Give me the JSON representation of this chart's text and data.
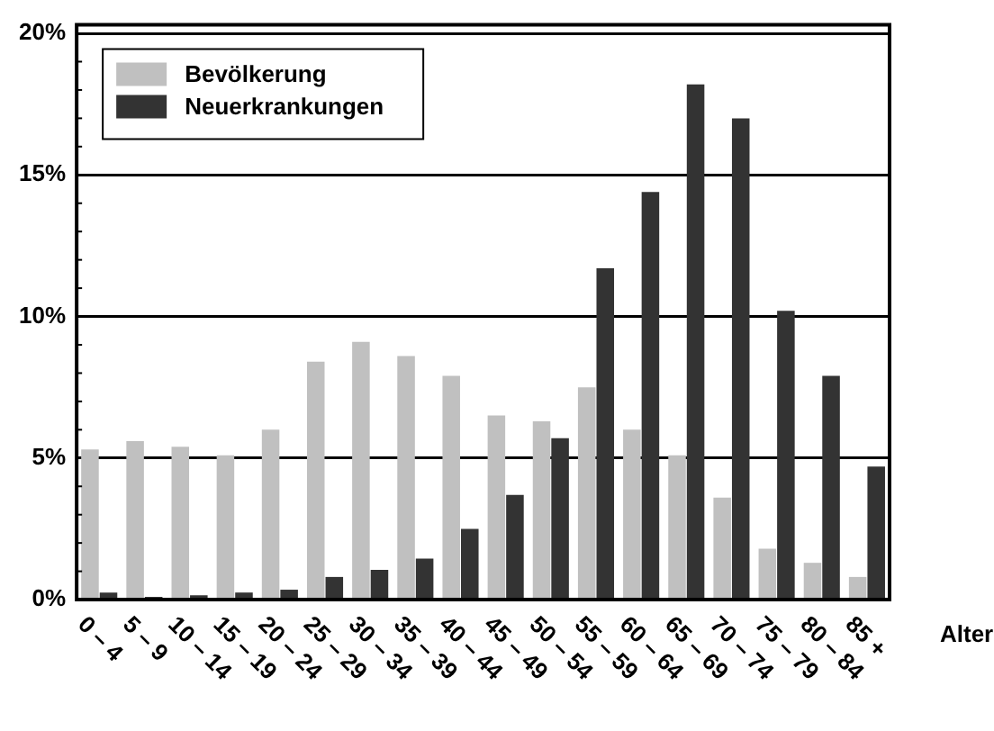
{
  "chart_data": {
    "type": "bar",
    "xlabel": "Alter",
    "categories": [
      "0 – 4",
      "5 – 9",
      "10 – 14",
      "15 – 19",
      "20 – 24",
      "25 – 29",
      "30 – 34",
      "35 – 39",
      "40 – 44",
      "45 – 49",
      "50 – 54",
      "55 – 59",
      "60 – 64",
      "65 – 69",
      "70 – 74",
      "75 – 79",
      "80 – 84",
      "85 +"
    ],
    "series": [
      {
        "name": "Bevölkerung",
        "color": "#c0c0c0",
        "values": [
          5.3,
          5.6,
          5.4,
          5.1,
          6.0,
          8.4,
          9.1,
          8.6,
          7.9,
          6.5,
          6.3,
          7.5,
          6.0,
          5.1,
          3.6,
          1.8,
          1.3,
          0.8
        ]
      },
      {
        "name": "Neuerkrankungen",
        "color": "#333333",
        "values": [
          0.25,
          0.1,
          0.15,
          0.25,
          0.35,
          0.8,
          1.05,
          1.45,
          2.5,
          3.7,
          5.7,
          11.7,
          14.4,
          18.2,
          17.0,
          10.2,
          7.9,
          4.7
        ]
      }
    ],
    "ylim": [
      0,
      20.3
    ],
    "yticks": [
      {
        "value": 0,
        "label": "0%"
      },
      {
        "value": 1,
        "label": null
      },
      {
        "value": 2,
        "label": null
      },
      {
        "value": 3,
        "label": null
      },
      {
        "value": 4,
        "label": null
      },
      {
        "value": 5,
        "label": "5%"
      },
      {
        "value": 6,
        "label": null
      },
      {
        "value": 7,
        "label": null
      },
      {
        "value": 8,
        "label": null
      },
      {
        "value": 9,
        "label": null
      },
      {
        "value": 10,
        "label": "10%"
      },
      {
        "value": 11,
        "label": null
      },
      {
        "value": 12,
        "label": null
      },
      {
        "value": 13,
        "label": null
      },
      {
        "value": 14,
        "label": null
      },
      {
        "value": 15,
        "label": "15%"
      },
      {
        "value": 16,
        "label": null
      },
      {
        "value": 17,
        "label": null
      },
      {
        "value": 18,
        "label": null
      },
      {
        "value": 19,
        "label": null
      },
      {
        "value": 20,
        "label": "20%"
      }
    ],
    "grid": "y",
    "legend": "top left"
  }
}
